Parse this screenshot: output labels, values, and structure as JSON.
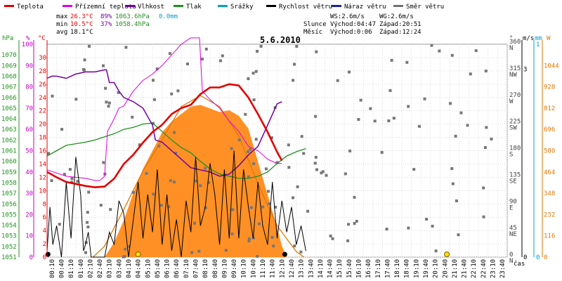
{
  "chart_data": {
    "type": "line",
    "title": "5.6.2010",
    "x_axis_label": "čas",
    "legend": [
      {
        "name": "Teplota",
        "color": "#e00000"
      },
      {
        "name": "Přízemní teplota",
        "color": "#e000e0"
      },
      {
        "name": "Vlhkost",
        "color": "#7000a0"
      },
      {
        "name": "Tlak",
        "color": "#209020"
      },
      {
        "name": "Srážky",
        "color": "#00a0d0"
      },
      {
        "name": "Rychlost větru",
        "color": "#000000"
      },
      {
        "name": "Náraz větru",
        "color": "#2020a0"
      },
      {
        "name": "Směr větru",
        "color": "#707070"
      }
    ],
    "stats": {
      "max": {
        "label": "max",
        "temp": "26.3°C",
        "hum": "89%",
        "press": "1063.6hPa",
        "rain": "0.0mm"
      },
      "min": {
        "label": "min",
        "temp": "10.5°C",
        "hum": "37%",
        "press": "1058.4hPa"
      },
      "avg": {
        "label": "avg",
        "temp": "18.1°C"
      }
    },
    "info": {
      "ws": "WS:2.6m/s",
      "wg": "WG:2.6m/s",
      "sun_label": "Slunce",
      "sun_rise": "Východ:04:47",
      "sun_set": "Západ:20:51",
      "moon_label": "Měsíc",
      "moon_rise": "Východ:0:06",
      "moon_set": "Západ:12:24"
    },
    "axes": {
      "hpa": {
        "unit": "hPa",
        "ticks": [
          1051,
          1052,
          1053,
          1054,
          1055,
          1056,
          1057,
          1058,
          1059,
          1060,
          1061,
          1062,
          1063,
          1064,
          1065,
          1066,
          1067,
          1068,
          1069,
          1070
        ],
        "range": [
          1051,
          1071
        ]
      },
      "percent": {
        "unit": "%",
        "ticks": [
          0,
          5,
          10,
          15,
          20,
          25,
          30,
          35,
          40,
          45,
          50,
          55,
          60,
          65,
          70,
          75,
          80,
          85,
          90,
          95,
          100
        ],
        "range": [
          0,
          100
        ]
      },
      "celsius": {
        "unit": "°C",
        "ticks": [
          0,
          2,
          4,
          6,
          8,
          10,
          12,
          14,
          16,
          18,
          20,
          22,
          24,
          26,
          28,
          30
        ],
        "range": [
          0,
          32
        ]
      },
      "direction": {
        "unit": "°",
        "ticks": [
          {
            "v": 0,
            "deg": "0",
            "dir": "N"
          },
          {
            "v": 45,
            "deg": "45",
            "dir": "NE"
          },
          {
            "v": 90,
            "deg": "90",
            "dir": "E"
          },
          {
            "v": 135,
            "deg": "135",
            "dir": "SE"
          },
          {
            "v": 180,
            "deg": "180",
            "dir": "S"
          },
          {
            "v": 225,
            "deg": "225",
            "dir": "SW"
          },
          {
            "v": 270,
            "deg": "270",
            "dir": "W"
          },
          {
            "v": 315,
            "deg": "315",
            "dir": "NW"
          },
          {
            "v": 360,
            "deg": "360",
            "dir": "N"
          }
        ],
        "range": [
          0,
          360
        ]
      },
      "wind": {
        "unit": "m/s",
        "ticks": [
          {
            "v": 0,
            "label": "0"
          },
          {
            "v": 3,
            "label": "3"
          }
        ],
        "range": [
          0,
          3.4
        ]
      },
      "rain": {
        "unit": "mm",
        "ticks": [
          {
            "v": 0,
            "label": "0"
          },
          {
            "v": 1,
            "label": "1"
          }
        ],
        "range": [
          0,
          1
        ]
      },
      "solar": {
        "unit": "W",
        "ticks": [
          0,
          116,
          232,
          348,
          464,
          580,
          696,
          812,
          928,
          1044
        ],
        "range": [
          0,
          1160
        ]
      }
    },
    "time_labels": [
      "00:10",
      "00:40",
      "01:10",
      "01:40",
      "02:10",
      "02:40",
      "03:10",
      "03:40",
      "04:10",
      "04:40",
      "05:10",
      "05:40",
      "06:10",
      "06:40",
      "07:10",
      "07:40",
      "08:10",
      "08:40",
      "09:10",
      "09:40",
      "10:10",
      "10:40",
      "11:10",
      "11:40",
      "12:10",
      "12:40",
      "13:10",
      "13:40",
      "14:10",
      "14:40",
      "15:10",
      "15:40",
      "16:10",
      "16:40",
      "17:10",
      "17:40",
      "18:10",
      "18:40",
      "19:10",
      "19:40",
      "20:10",
      "20:40",
      "21:10",
      "21:40",
      "22:10",
      "22:40",
      "23:10",
      "23:40"
    ],
    "series": {
      "temperature": [
        [
          0,
          12.8
        ],
        [
          1,
          12.0
        ],
        [
          2,
          11.3
        ],
        [
          3,
          11.0
        ],
        [
          4,
          10.7
        ],
        [
          5,
          10.5
        ],
        [
          6,
          10.6
        ],
        [
          7,
          11.8
        ],
        [
          8,
          14.0
        ],
        [
          9,
          15.4
        ],
        [
          10,
          17.2
        ],
        [
          11,
          18.8
        ],
        [
          12,
          19.9
        ],
        [
          13,
          21.5
        ],
        [
          14,
          22.4
        ],
        [
          15,
          22.9
        ],
        [
          16,
          24.5
        ],
        [
          17,
          25.5
        ],
        [
          18,
          25.5
        ],
        [
          19,
          26.0
        ],
        [
          20,
          25.8
        ],
        [
          21,
          24.0
        ],
        [
          22,
          21.5
        ],
        [
          23,
          18.8
        ],
        [
          24,
          15.8
        ],
        [
          24.5,
          14.5
        ]
      ],
      "ground_temp": [
        [
          0,
          41
        ],
        [
          2,
          38
        ],
        [
          4,
          37
        ],
        [
          5,
          36
        ],
        [
          5.5,
          36
        ],
        [
          6,
          38
        ],
        [
          6.3,
          59
        ],
        [
          7,
          65
        ],
        [
          7.5,
          70
        ],
        [
          8,
          71
        ],
        [
          9,
          78
        ],
        [
          10,
          83
        ],
        [
          11,
          86
        ],
        [
          12,
          90
        ],
        [
          13,
          95
        ],
        [
          14,
          100
        ],
        [
          15,
          103
        ],
        [
          15.9,
          103
        ],
        [
          16.2,
          78
        ],
        [
          17,
          74
        ],
        [
          18,
          70
        ],
        [
          19,
          64
        ],
        [
          20,
          59
        ],
        [
          21,
          52
        ],
        [
          22,
          50
        ],
        [
          23,
          46
        ],
        [
          24,
          44
        ],
        [
          24.5,
          44
        ]
      ],
      "humidity": [
        [
          0,
          84
        ],
        [
          0.5,
          85
        ],
        [
          1,
          85
        ],
        [
          2,
          84
        ],
        [
          3,
          86
        ],
        [
          4,
          87
        ],
        [
          5,
          87
        ],
        [
          6,
          88
        ],
        [
          6.2,
          88
        ],
        [
          6.5,
          82
        ],
        [
          7,
          82
        ],
        [
          7.5,
          78
        ],
        [
          8,
          75
        ],
        [
          9,
          73
        ],
        [
          10,
          70
        ],
        [
          11,
          62
        ],
        [
          11.3,
          55
        ],
        [
          12,
          54
        ],
        [
          13,
          50
        ],
        [
          14,
          46
        ],
        [
          15,
          42
        ],
        [
          16,
          41
        ],
        [
          17,
          40
        ],
        [
          18,
          38
        ],
        [
          19,
          39
        ],
        [
          20,
          43
        ],
        [
          21,
          48
        ],
        [
          22,
          52
        ],
        [
          23,
          62
        ],
        [
          24,
          72
        ],
        [
          24.5,
          73
        ]
      ],
      "pressure": [
        [
          0,
          1060.5
        ],
        [
          1,
          1061.0
        ],
        [
          2,
          1061.5
        ],
        [
          4,
          1061.8
        ],
        [
          5,
          1062.0
        ],
        [
          6,
          1062.3
        ],
        [
          7,
          1062.6
        ],
        [
          8,
          1063.0
        ],
        [
          9,
          1063.2
        ],
        [
          10,
          1063.5
        ],
        [
          11,
          1063.6
        ],
        [
          12,
          1062.8
        ],
        [
          13,
          1062.0
        ],
        [
          14,
          1061.3
        ],
        [
          15,
          1060.8
        ],
        [
          16,
          1060.0
        ],
        [
          17,
          1059.3
        ],
        [
          18,
          1058.8
        ],
        [
          19,
          1058.6
        ],
        [
          20,
          1058.4
        ],
        [
          21,
          1058.4
        ],
        [
          22,
          1058.6
        ],
        [
          23,
          1059.0
        ],
        [
          24,
          1059.8
        ],
        [
          25,
          1060.5
        ],
        [
          26,
          1060.9
        ],
        [
          27,
          1061.2
        ]
      ],
      "wind_speed": [
        [
          0,
          0.1
        ],
        [
          0.3,
          0.8
        ],
        [
          0.6,
          0.2
        ],
        [
          1,
          0.5
        ],
        [
          1.5,
          0
        ],
        [
          2,
          1.2
        ],
        [
          2.5,
          0.3
        ],
        [
          3,
          1.6
        ],
        [
          3.5,
          1.0
        ],
        [
          3.8,
          0.1
        ],
        [
          4,
          0.2
        ],
        [
          4.3,
          0.4
        ],
        [
          4.6,
          0
        ],
        [
          6,
          0
        ],
        [
          6.5,
          0.4
        ],
        [
          7,
          0.2
        ],
        [
          7.5,
          0.9
        ],
        [
          8,
          0.7
        ],
        [
          8.5,
          0
        ],
        [
          9,
          0.6
        ],
        [
          9.5,
          1.2
        ],
        [
          10,
          0.3
        ],
        [
          10.5,
          1.0
        ],
        [
          11,
          0.4
        ],
        [
          11.5,
          1.4
        ],
        [
          12,
          0.2
        ],
        [
          12.5,
          1.0
        ],
        [
          13,
          0.1
        ],
        [
          13.5,
          0.6
        ],
        [
          14,
          0
        ],
        [
          14.5,
          0.9
        ],
        [
          15,
          0.4
        ],
        [
          15.5,
          1.6
        ],
        [
          16,
          0.5
        ],
        [
          16.5,
          0.8
        ],
        [
          17,
          1.5
        ],
        [
          17.5,
          1.0
        ],
        [
          18,
          0.2
        ],
        [
          18.5,
          1.4
        ],
        [
          19,
          0.3
        ],
        [
          19.5,
          1.7
        ],
        [
          20,
          0.3
        ],
        [
          20.5,
          1.4
        ],
        [
          21,
          0.8
        ],
        [
          21.5,
          0.3
        ],
        [
          22,
          1.2
        ],
        [
          22.5,
          0.5
        ],
        [
          23,
          0.2
        ],
        [
          23.5,
          1.2
        ],
        [
          24,
          0.3
        ],
        [
          24.5,
          0.9
        ],
        [
          25,
          0.4
        ],
        [
          25.5,
          0.8
        ],
        [
          26,
          0.2
        ],
        [
          26.5,
          0.5
        ],
        [
          27,
          0.1
        ]
      ],
      "solar": [
        [
          6,
          0
        ],
        [
          7,
          80
        ],
        [
          8,
          200
        ],
        [
          9,
          350
        ],
        [
          10,
          480
        ],
        [
          11,
          580
        ],
        [
          12,
          680
        ],
        [
          13,
          740
        ],
        [
          14,
          780
        ],
        [
          15,
          820
        ],
        [
          16,
          830
        ],
        [
          17,
          810
        ],
        [
          18,
          790
        ],
        [
          19,
          800
        ],
        [
          20,
          770
        ],
        [
          21,
          700
        ],
        [
          22,
          520
        ],
        [
          23,
          340
        ],
        [
          24,
          160
        ],
        [
          24.5,
          60
        ],
        [
          25,
          0
        ]
      ],
      "solar_max": [
        [
          4.8,
          0
        ],
        [
          6,
          60
        ],
        [
          8,
          260
        ],
        [
          10,
          470
        ],
        [
          12,
          640
        ],
        [
          14,
          820
        ],
        [
          16,
          880
        ],
        [
          18,
          820
        ],
        [
          20,
          660
        ],
        [
          22,
          400
        ],
        [
          24,
          170
        ],
        [
          26,
          30
        ],
        [
          26.8,
          0
        ]
      ]
    }
  }
}
